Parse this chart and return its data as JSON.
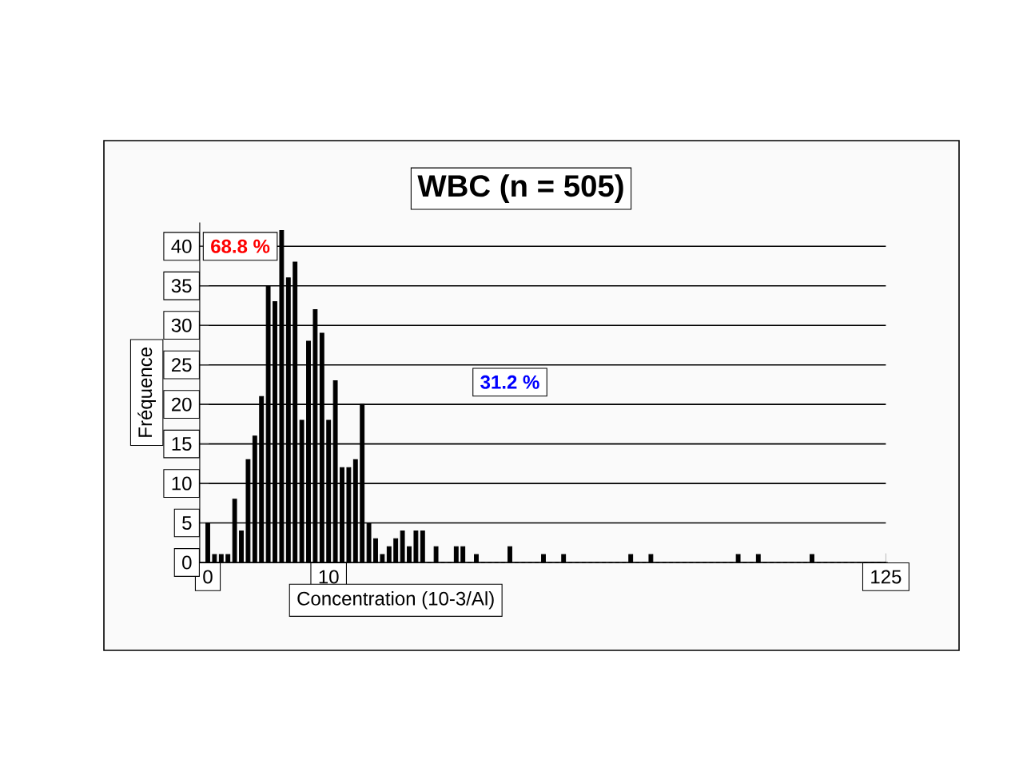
{
  "chart_data": {
    "type": "bar",
    "title": "WBC (n = 505)",
    "xlabel": "Concentration (10-3/Al)",
    "ylabel": "Fréquence",
    "categories": [
      "0",
      null,
      null,
      null,
      null,
      null,
      null,
      null,
      null,
      null,
      null,
      null,
      null,
      null,
      null,
      null,
      null,
      null,
      "10",
      null,
      null,
      null,
      null,
      null,
      null,
      null,
      null,
      null,
      null,
      null,
      null,
      null,
      null,
      null,
      null,
      null,
      null,
      null,
      null,
      null,
      null,
      null,
      null,
      null,
      null,
      null,
      null,
      null,
      null,
      null,
      null,
      null,
      null,
      null,
      null,
      null,
      null,
      null,
      null,
      null,
      null,
      null,
      null,
      null,
      null,
      null,
      null,
      null,
      null,
      null,
      null,
      null,
      null,
      null,
      null,
      null,
      null,
      null,
      null,
      null,
      null,
      null,
      null,
      null,
      null,
      null,
      null,
      null,
      null,
      null,
      null,
      null,
      null,
      null,
      null,
      null,
      null,
      null,
      null,
      null,
      null,
      "125"
    ],
    "values": [
      5,
      1,
      1,
      1,
      8,
      4,
      13,
      16,
      21,
      35,
      33,
      42,
      36,
      38,
      18,
      28,
      32,
      29,
      18,
      23,
      12,
      12,
      13,
      20,
      5,
      3,
      1,
      2,
      3,
      4,
      2,
      4,
      4,
      0,
      2,
      0,
      0,
      2,
      2,
      0,
      1,
      0,
      0,
      0,
      0,
      2,
      0,
      0,
      0,
      0,
      1,
      0,
      0,
      1,
      0,
      0,
      0,
      0,
      0,
      0,
      0,
      0,
      0,
      1,
      0,
      0,
      1,
      0,
      0,
      0,
      0,
      0,
      0,
      0,
      0,
      0,
      0,
      0,
      0,
      1,
      0,
      0,
      1,
      0,
      0,
      0,
      0,
      0,
      0,
      0,
      1,
      0,
      0,
      0,
      0,
      0,
      0,
      0,
      0,
      0,
      0,
      0
    ],
    "color": "#000000",
    "ylim": [
      0,
      43
    ],
    "yticks": [
      0,
      5,
      10,
      15,
      20,
      25,
      30,
      35,
      40
    ],
    "grid": "y",
    "annotations": [
      "68.8 %",
      "31.2 %"
    ]
  }
}
